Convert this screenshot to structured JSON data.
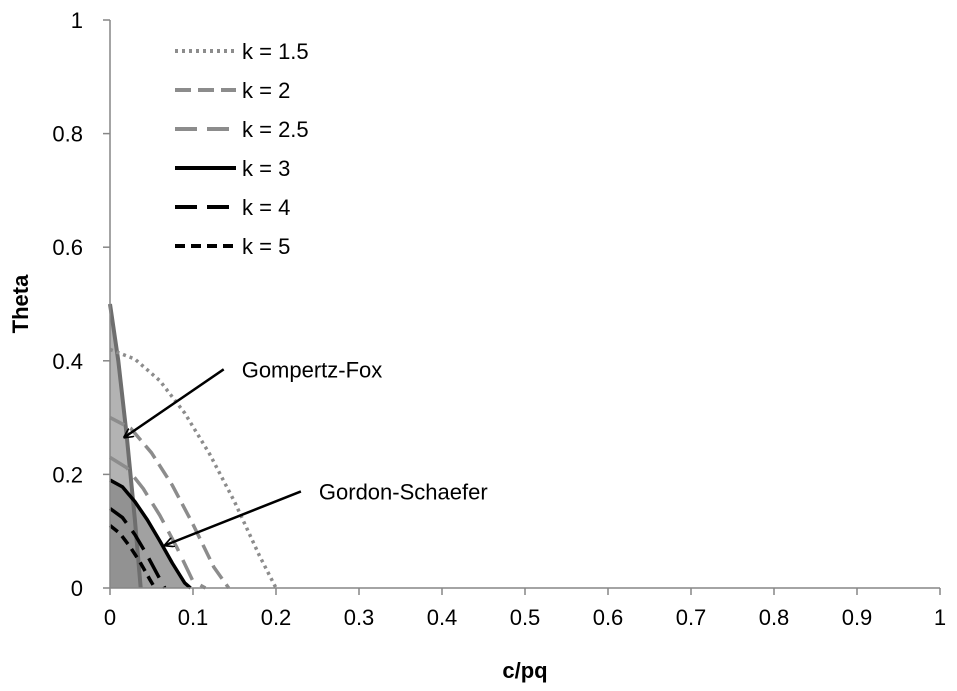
{
  "chart_data": {
    "type": "line",
    "title": "",
    "xlabel": "c/pq",
    "ylabel": "Theta",
    "xlim": [
      0,
      1
    ],
    "ylim": [
      0,
      1
    ],
    "x_ticks": [
      "0",
      "0.1",
      "0.2",
      "0.3",
      "0.4",
      "0.5",
      "0.6",
      "0.7",
      "0.8",
      "0.9",
      "1"
    ],
    "y_ticks": [
      "0",
      "0.2",
      "0.4",
      "0.6",
      "0.8",
      "1"
    ],
    "grid": false,
    "legend_position": "top-left",
    "series": [
      {
        "name": "k = 1.5",
        "color": "#8c8c8c",
        "style": "dotted",
        "x": [
          0,
          0.03,
          0.06,
          0.09,
          0.12,
          0.15,
          0.18,
          0.2
        ],
        "y": [
          0.42,
          0.403,
          0.365,
          0.308,
          0.236,
          0.152,
          0.057,
          0
        ]
      },
      {
        "name": "k = 2",
        "color": "#8c8c8c",
        "style": "dash-medium",
        "x": [
          0,
          0.025,
          0.05,
          0.075,
          0.1,
          0.125,
          0.143
        ],
        "y": [
          0.3,
          0.281,
          0.238,
          0.181,
          0.112,
          0.037,
          0
        ]
      },
      {
        "name": "k = 2.5",
        "color": "#8c8c8c",
        "style": "dash-long",
        "x": [
          0,
          0.02,
          0.04,
          0.06,
          0.08,
          0.1,
          0.115
        ],
        "y": [
          0.23,
          0.212,
          0.175,
          0.128,
          0.073,
          0.012,
          0
        ]
      },
      {
        "name": "k = 3",
        "color": "#000000",
        "style": "solid",
        "x": [
          0,
          0.015,
          0.03,
          0.045,
          0.06,
          0.075,
          0.09,
          0.097
        ],
        "y": [
          0.19,
          0.178,
          0.152,
          0.12,
          0.083,
          0.044,
          0.009,
          0
        ]
      },
      {
        "name": "k = 4",
        "color": "#000000",
        "style": "dash-long",
        "x": [
          0,
          0.015,
          0.03,
          0.045,
          0.06,
          0.066
        ],
        "y": [
          0.14,
          0.124,
          0.094,
          0.057,
          0.016,
          0
        ]
      },
      {
        "name": "k = 5",
        "color": "#000000",
        "style": "dash-short",
        "x": [
          0,
          0.012,
          0.024,
          0.036,
          0.048,
          0.054
        ],
        "y": [
          0.11,
          0.096,
          0.073,
          0.046,
          0.015,
          0
        ]
      }
    ],
    "regions": [
      {
        "name": "Gompertz-Fox",
        "fill": "#a6a6a6",
        "boundary_color": "#6e6e6e",
        "x": [
          0,
          0.01,
          0.02,
          0.03,
          0.037
        ],
        "y": [
          0.5,
          0.4,
          0.27,
          0.12,
          0
        ]
      },
      {
        "name": "Gordon-Schaefer",
        "fill": "#8a8a8a",
        "boundary_color": "#000000",
        "x": [
          0,
          0.015,
          0.03,
          0.045,
          0.06,
          0.075,
          0.09,
          0.097
        ],
        "y": [
          0.19,
          0.178,
          0.152,
          0.12,
          0.083,
          0.044,
          0.009,
          0
        ]
      }
    ],
    "annotations": [
      {
        "text": "Gompertz-Fox",
        "arrow_to": {
          "x": 0.017,
          "y": 0.265
        },
        "arrow_from": {
          "x": 0.137,
          "y": 0.385
        }
      },
      {
        "text": "Gordon-Schaefer",
        "arrow_to": {
          "x": 0.066,
          "y": 0.075
        },
        "arrow_from": {
          "x": 0.23,
          "y": 0.17
        }
      }
    ]
  }
}
